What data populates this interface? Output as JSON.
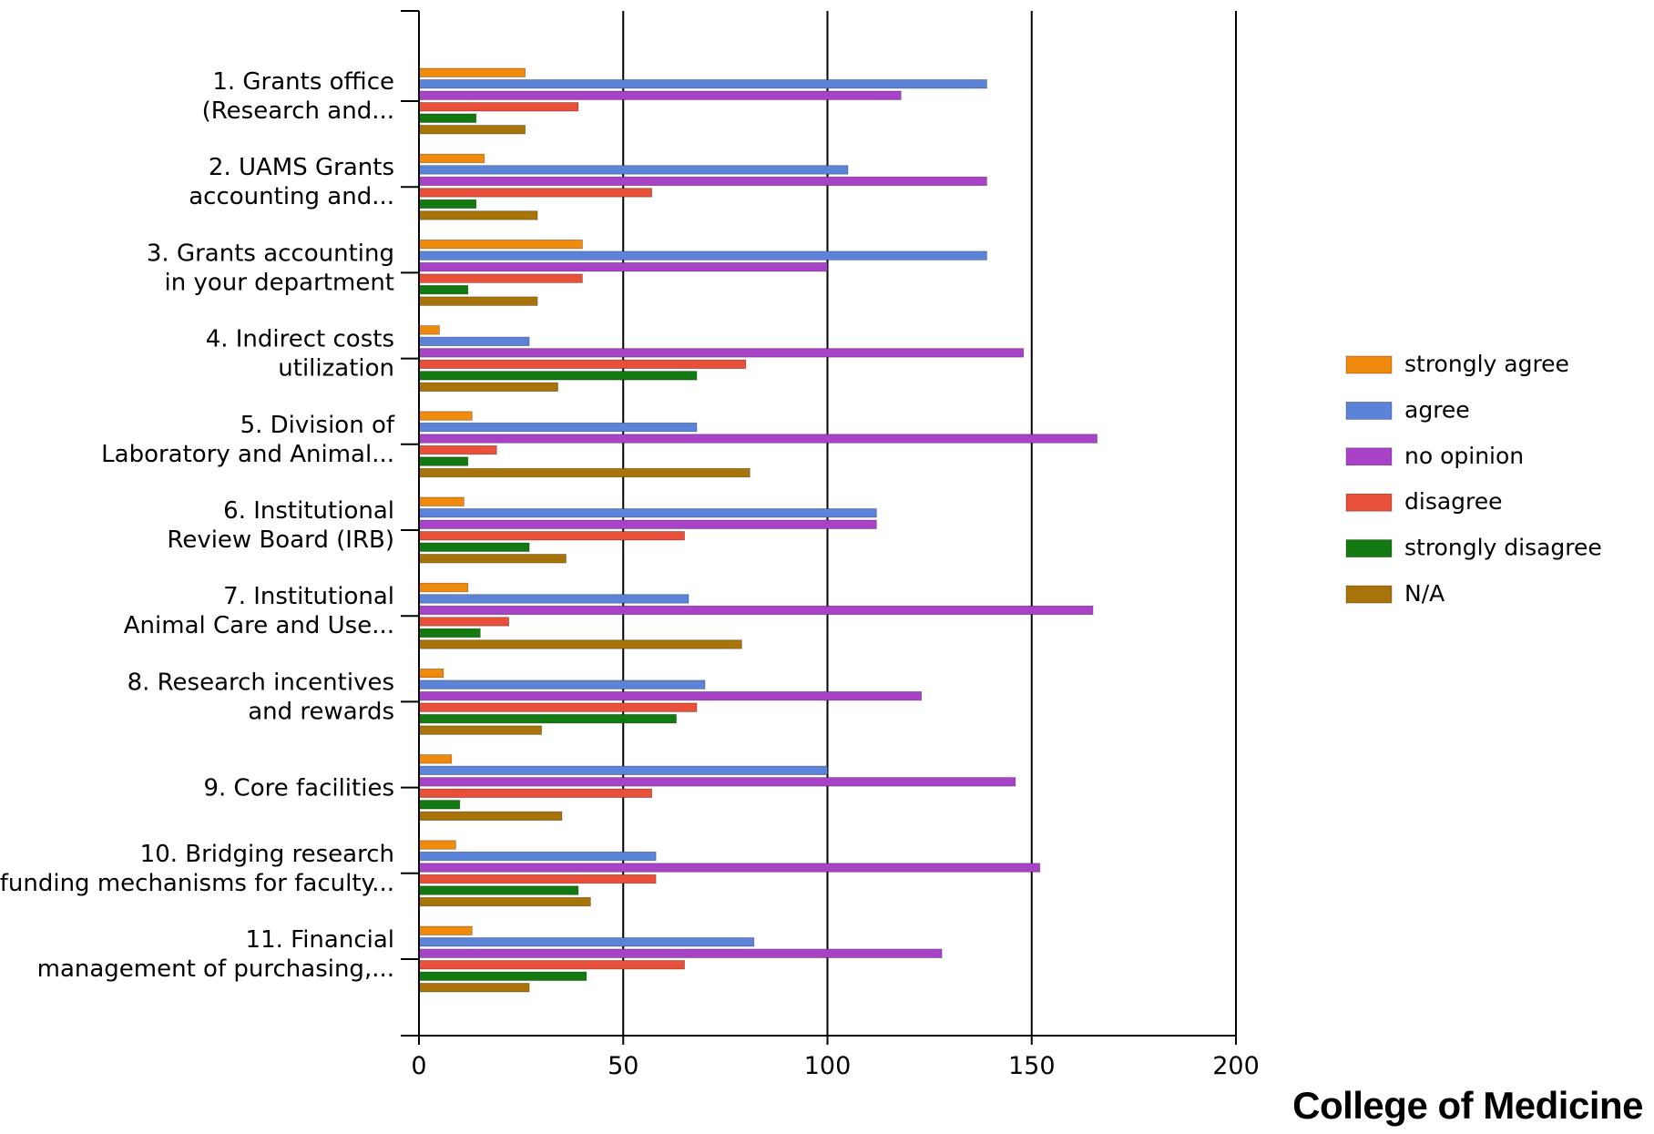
{
  "footer": {
    "text": "College of Medicine"
  },
  "chart_data": {
    "type": "bar",
    "orientation": "horizontal",
    "title": "",
    "xlabel": "",
    "ylabel": "",
    "xlim": [
      0,
      200
    ],
    "xticks": [
      0,
      50,
      100,
      150,
      200
    ],
    "grid": true,
    "legend_position": "right",
    "categories": [
      [
        "1. Grants office",
        "(Research and..."
      ],
      [
        "2. UAMS Grants",
        "accounting and..."
      ],
      [
        "3. Grants accounting",
        "in your department"
      ],
      [
        "4. Indirect costs",
        "utilization"
      ],
      [
        "5. Division of",
        "Laboratory and Animal..."
      ],
      [
        "6. Institutional",
        "Review Board (IRB)"
      ],
      [
        "7. Institutional",
        "Animal Care and Use..."
      ],
      [
        "8. Research incentives",
        "and rewards"
      ],
      [
        "9. Core facilities"
      ],
      [
        "10. Bridging research",
        "funding mechanisms for faculty..."
      ],
      [
        "11. Financial",
        "management of purchasing,..."
      ]
    ],
    "series": [
      {
        "name": "strongly agree",
        "color": "#F08A0C",
        "values": [
          26,
          16,
          40,
          5,
          13,
          11,
          12,
          6,
          8,
          9,
          13
        ]
      },
      {
        "name": "agree",
        "color": "#5B84D8",
        "values": [
          139,
          105,
          139,
          27,
          68,
          112,
          66,
          70,
          100,
          58,
          82
        ]
      },
      {
        "name": "no opinion",
        "color": "#A843C8",
        "values": [
          118,
          139,
          100,
          148,
          166,
          112,
          165,
          123,
          146,
          152,
          128
        ]
      },
      {
        "name": "disagree",
        "color": "#E8503A",
        "values": [
          39,
          57,
          40,
          80,
          19,
          65,
          22,
          68,
          57,
          58,
          65
        ]
      },
      {
        "name": "strongly disagree",
        "color": "#127A10",
        "values": [
          14,
          14,
          12,
          68,
          12,
          27,
          15,
          63,
          10,
          39,
          41
        ]
      },
      {
        "name": "N/A",
        "color": "#A8740A",
        "values": [
          26,
          29,
          29,
          34,
          81,
          36,
          79,
          30,
          35,
          42,
          27
        ]
      }
    ]
  }
}
